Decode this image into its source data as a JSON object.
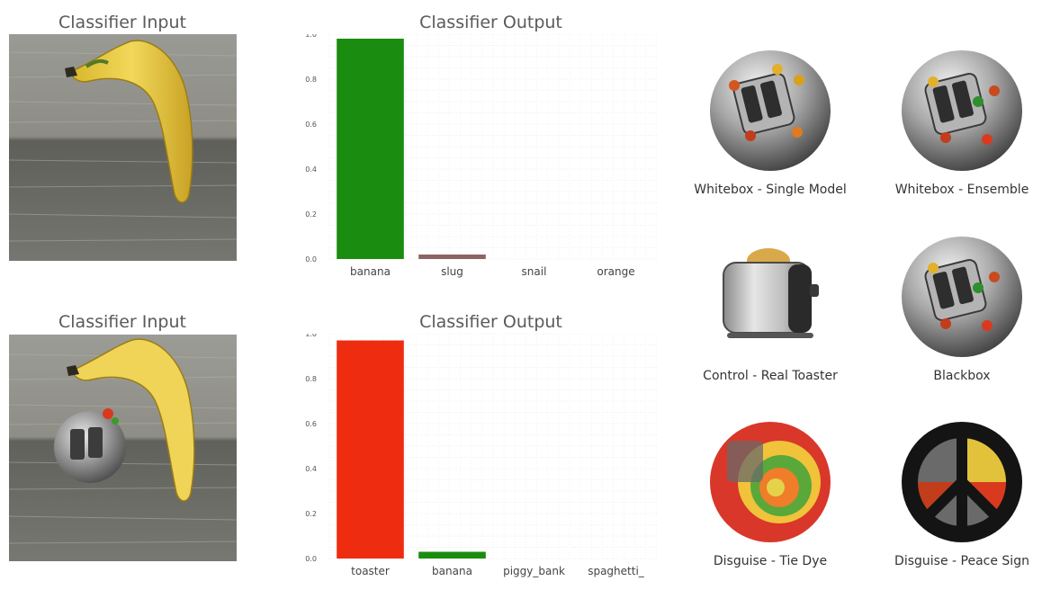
{
  "top_row": {
    "input_title": "Classifier Input",
    "output_title": "Classifier Output"
  },
  "bottom_row": {
    "input_title": "Classifier Input",
    "output_title": "Classifier Output"
  },
  "chart_data": [
    {
      "type": "bar",
      "title": "Classifier Output",
      "categories": [
        "banana",
        "slug",
        "snail",
        "orange"
      ],
      "values": [
        0.98,
        0.02,
        0.0,
        0.0
      ],
      "colors": [
        "#1a8c0f",
        "#8c6464",
        "#8c6464",
        "#8c6464"
      ],
      "yticks": [
        "0.0",
        "0.2",
        "0.4",
        "0.6",
        "0.8",
        "1.0"
      ],
      "ylim": [
        0,
        1
      ],
      "grid": true
    },
    {
      "type": "bar",
      "title": "Classifier Output",
      "categories": [
        "toaster",
        "banana",
        "piggy_bank",
        "spaghetti_"
      ],
      "values": [
        0.97,
        0.03,
        0.0,
        0.0
      ],
      "colors": [
        "#ee2d10",
        "#1a8c0f",
        "#8c6464",
        "#8c6464"
      ],
      "yticks": [
        "0.0",
        "0.2",
        "0.4",
        "0.6",
        "0.8",
        "1.0"
      ],
      "ylim": [
        0,
        1
      ],
      "grid": true
    }
  ],
  "patches": [
    {
      "label": "Whitebox - Single Model",
      "icon": "toaster-patch-icon"
    },
    {
      "label": "Whitebox - Ensemble",
      "icon": "toaster-patch-icon"
    },
    {
      "label": "Control - Real Toaster",
      "icon": "real-toaster-icon"
    },
    {
      "label": "Blackbox",
      "icon": "toaster-patch-icon"
    },
    {
      "label": "Disguise - Tie Dye",
      "icon": "tie-dye-patch-icon"
    },
    {
      "label": "Disguise - Peace Sign",
      "icon": "peace-sign-patch-icon"
    }
  ]
}
